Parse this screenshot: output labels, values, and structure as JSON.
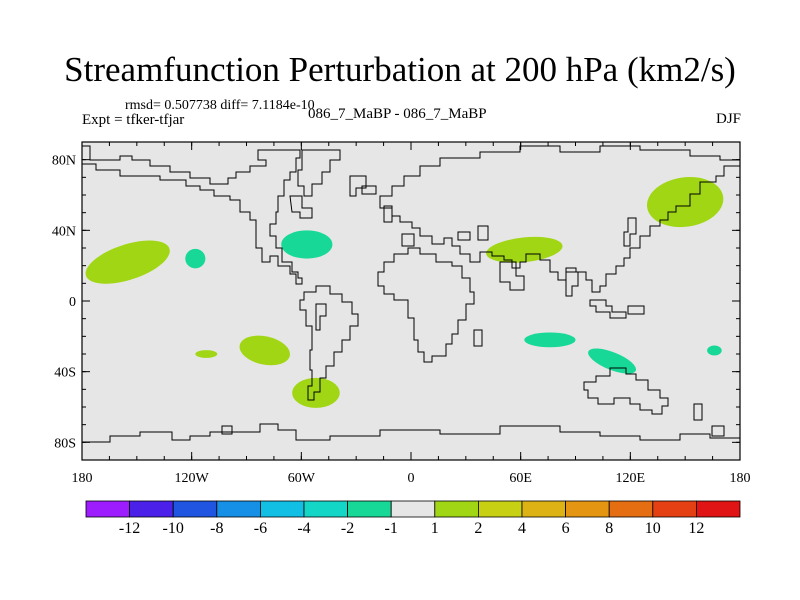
{
  "title": "Streamfunction Perturbation at 200 hPa (km2/s)",
  "stats_line": "rmsd= 0.507738 diff= 7.1184e-10",
  "expt_line": "Expt = tfker-tfjar",
  "subtitle": "086_7_MaBP - 086_7_MaBP",
  "season": "DJF",
  "map": {
    "projection": "cylindrical-equidistant",
    "lon_range": [
      -180,
      180
    ],
    "lat_range": [
      -90,
      90
    ],
    "background": "#e6e6e6",
    "coastline_color": "#000000",
    "lat_ticks": [
      {
        "value": 80,
        "label": "80N"
      },
      {
        "value": 40,
        "label": "40N"
      },
      {
        "value": 0,
        "label": "0"
      },
      {
        "value": -40,
        "label": "40S"
      },
      {
        "value": -80,
        "label": "80S"
      }
    ],
    "lon_ticks": [
      {
        "value": -180,
        "label": "180"
      },
      {
        "value": -120,
        "label": "120W"
      },
      {
        "value": -60,
        "label": "60W"
      },
      {
        "value": 0,
        "label": "0"
      },
      {
        "value": 60,
        "label": "60E"
      },
      {
        "value": 120,
        "label": "120E"
      },
      {
        "value": 180,
        "label": "180"
      }
    ],
    "anomalies": [
      {
        "lon": -155,
        "lat": 22,
        "rlon": 24,
        "rlat": 10,
        "rot": -18,
        "color": "#a0d614"
      },
      {
        "lon": -118,
        "lat": 24,
        "rlon": 5.5,
        "rlat": 5.5,
        "rot": 0,
        "color": "#18d898"
      },
      {
        "lon": -57,
        "lat": 32,
        "rlon": 14,
        "rlat": 8,
        "rot": 0,
        "color": "#18d898"
      },
      {
        "lon": 62,
        "lat": 29,
        "rlon": 21,
        "rlat": 7,
        "rot": -6,
        "color": "#a0d614"
      },
      {
        "lon": 150,
        "lat": 56,
        "rlon": 21,
        "rlat": 14,
        "rot": -8,
        "color": "#a0d614"
      },
      {
        "lon": -112,
        "lat": -30,
        "rlon": 6,
        "rlat": 2.2,
        "rot": 0,
        "color": "#a0d614"
      },
      {
        "lon": -80,
        "lat": -28,
        "rlon": 14,
        "rlat": 8,
        "rot": 12,
        "color": "#a0d614"
      },
      {
        "lon": -52,
        "lat": -52,
        "rlon": 13,
        "rlat": 8.5,
        "rot": 0,
        "color": "#a0d614"
      },
      {
        "lon": 76,
        "lat": -22,
        "rlon": 14,
        "rlat": 4.2,
        "rot": 0,
        "color": "#18d898"
      },
      {
        "lon": 110,
        "lat": -34,
        "rlon": 14,
        "rlat": 5,
        "rot": 22,
        "color": "#18d898"
      },
      {
        "lon": 166,
        "lat": -28,
        "rlon": 4,
        "rlat": 2.8,
        "rot": 0,
        "color": "#18d898"
      }
    ]
  },
  "colorbar": {
    "colors": [
      "#9d1dff",
      "#4b20e8",
      "#1f55e0",
      "#168fe6",
      "#12bfe4",
      "#14d6c6",
      "#18d898",
      "#e6e6e6",
      "#a0d614",
      "#c8d014",
      "#dcb214",
      "#e49612",
      "#e66e12",
      "#e44014",
      "#e01414"
    ],
    "labels": [
      "-12",
      "-10",
      "-8",
      "-6",
      "-4",
      "-2",
      "-1",
      "1",
      "2",
      "4",
      "6",
      "8",
      "10",
      "12"
    ]
  }
}
